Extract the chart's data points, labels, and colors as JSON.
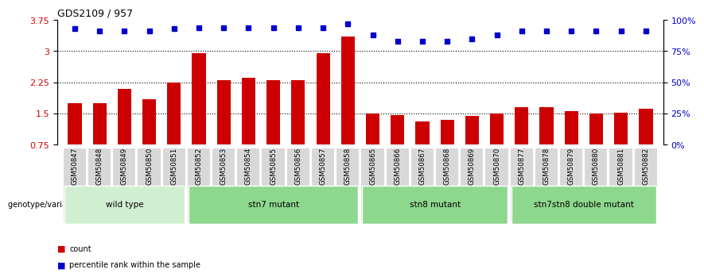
{
  "title": "GDS2109 / 957",
  "samples": [
    "GSM50847",
    "GSM50848",
    "GSM50849",
    "GSM50850",
    "GSM50851",
    "GSM50852",
    "GSM50853",
    "GSM50854",
    "GSM50855",
    "GSM50856",
    "GSM50857",
    "GSM50858",
    "GSM50865",
    "GSM50866",
    "GSM50867",
    "GSM50868",
    "GSM50869",
    "GSM50870",
    "GSM50877",
    "GSM50878",
    "GSM50879",
    "GSM50880",
    "GSM50881",
    "GSM50882"
  ],
  "bar_values": [
    1.75,
    1.75,
    2.1,
    1.85,
    2.25,
    2.95,
    2.3,
    2.35,
    2.3,
    2.3,
    2.95,
    3.35,
    1.5,
    1.47,
    1.3,
    1.35,
    1.45,
    1.5,
    1.65,
    1.65,
    1.55,
    1.5,
    1.52,
    1.62
  ],
  "dot_values": [
    93,
    91,
    91,
    91,
    93,
    94,
    94,
    94,
    94,
    94,
    94,
    97,
    88,
    83,
    83,
    83,
    85,
    88,
    91,
    91,
    91,
    91,
    91,
    91
  ],
  "bar_color": "#cc0000",
  "dot_color": "#0000cc",
  "ylim_left": [
    0.75,
    3.75
  ],
  "ylim_right": [
    0,
    100
  ],
  "yticks_left": [
    0.75,
    1.5,
    2.25,
    3.0,
    3.75
  ],
  "ytick_labels_left": [
    "0.75",
    "1.5",
    "2.25",
    "3",
    "3.75"
  ],
  "yticks_right": [
    0,
    25,
    50,
    75,
    100
  ],
  "ytick_labels_right": [
    "0%",
    "25%",
    "50%",
    "75%",
    "100%"
  ],
  "grid_values": [
    1.5,
    2.25,
    3.0
  ],
  "group_data": [
    {
      "label": "wild type",
      "start": 0,
      "end": 5,
      "color": "#c8f0c8"
    },
    {
      "label": "stn7 mutant",
      "start": 5,
      "end": 12,
      "color": "#90d890"
    },
    {
      "label": "stn8 mutant",
      "start": 12,
      "end": 18,
      "color": "#90d890"
    },
    {
      "label": "stn7stn8 double mutant",
      "start": 18,
      "end": 24,
      "color": "#90d890"
    }
  ],
  "genotype_label": "genotype/variation",
  "legend_count_label": "count",
  "legend_percentile_label": "percentile rank within the sample",
  "tick_label_bg": "#d8d8d8"
}
